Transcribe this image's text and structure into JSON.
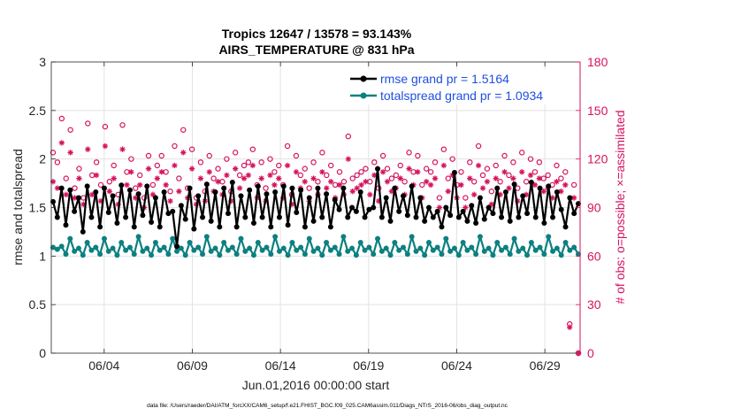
{
  "chart_data": {
    "type": "line",
    "title": "Tropics 12647 / 13578 = 93.143%",
    "subtitle": "AIRS_TEMPERATURE @ 831 hPa",
    "xlabel": "Jun.01,2016 00:00:00 start",
    "ylabel_left": "rmse and totalspread",
    "ylabel_right": "# of obs: o=possible; ×=assimilated",
    "xlim": [
      0,
      30
    ],
    "ylim_left": [
      0,
      3
    ],
    "ylim_right": [
      0,
      180
    ],
    "xticks": [
      {
        "x": 3,
        "label": "06/04"
      },
      {
        "x": 8,
        "label": "06/09"
      },
      {
        "x": 13,
        "label": "06/14"
      },
      {
        "x": 18,
        "label": "06/19"
      },
      {
        "x": 23,
        "label": "06/24"
      },
      {
        "x": 28,
        "label": "06/29"
      }
    ],
    "yticks_left": [
      "0",
      "0.5",
      "1",
      "1.5",
      "2",
      "2.5",
      "3"
    ],
    "yticks_right": [
      "0",
      "30",
      "60",
      "90",
      "120",
      "150",
      "180"
    ],
    "grid": true,
    "legend": {
      "placement": "top-right"
    },
    "series": [
      {
        "name": "rmse grand pr = 1.5164",
        "color": "#000000",
        "axis": "left",
        "values": [
          1.56,
          1.4,
          1.7,
          1.32,
          1.68,
          1.46,
          1.6,
          1.25,
          1.72,
          1.4,
          1.66,
          1.3,
          1.7,
          1.45,
          1.62,
          1.34,
          1.73,
          1.4,
          1.68,
          1.3,
          1.64,
          1.42,
          1.72,
          1.35,
          1.6,
          1.3,
          1.66,
          1.44,
          1.46,
          1.1,
          1.52,
          1.38,
          1.7,
          1.28,
          1.62,
          1.4,
          1.74,
          1.36,
          1.66,
          1.3,
          1.7,
          1.44,
          1.76,
          1.3,
          1.62,
          1.4,
          1.68,
          1.34,
          1.72,
          1.4,
          1.64,
          1.3,
          1.66,
          1.4,
          1.72,
          1.32,
          1.7,
          1.45,
          1.68,
          1.3,
          1.6,
          1.36,
          1.7,
          1.4,
          1.64,
          1.3,
          1.58,
          1.48,
          1.7,
          1.4,
          1.5,
          1.46,
          1.66,
          1.4,
          1.48,
          1.5,
          1.9,
          1.4,
          1.6,
          1.36,
          1.7,
          1.46,
          1.62,
          1.42,
          1.72,
          1.4,
          1.6,
          1.36,
          1.5,
          1.4,
          1.46,
          1.3,
          1.5,
          1.42,
          1.86,
          1.4,
          1.46,
          1.36,
          1.52,
          1.34,
          1.6,
          1.38,
          1.5,
          1.44,
          1.7,
          1.4,
          1.66,
          1.36,
          1.74,
          1.4,
          1.62,
          1.44,
          1.76,
          1.4,
          1.7,
          1.34,
          1.72,
          1.4,
          1.66,
          1.48,
          1.3,
          1.6,
          1.44,
          1.54
        ]
      },
      {
        "name": "totalspread grand pr = 1.0934",
        "color": "#0d8080",
        "axis": "left",
        "values": [
          1.09,
          1.07,
          1.1,
          1.02,
          1.18,
          1.05,
          1.08,
          1.01,
          1.14,
          1.06,
          1.09,
          1.02,
          1.18,
          1.05,
          1.08,
          1.01,
          1.14,
          1.06,
          1.09,
          1.02,
          1.2,
          1.05,
          1.08,
          1.01,
          1.14,
          1.06,
          1.09,
          1.02,
          1.18,
          1.05,
          1.08,
          1.01,
          1.14,
          1.06,
          1.09,
          1.02,
          1.2,
          1.05,
          1.08,
          1.01,
          1.14,
          1.06,
          1.09,
          1.02,
          1.18,
          1.05,
          1.08,
          1.01,
          1.14,
          1.06,
          1.09,
          1.02,
          1.2,
          1.05,
          1.08,
          1.01,
          1.14,
          1.06,
          1.09,
          1.02,
          1.18,
          1.05,
          1.08,
          1.01,
          1.14,
          1.06,
          1.09,
          1.02,
          1.2,
          1.05,
          1.08,
          1.01,
          1.14,
          1.06,
          1.09,
          1.02,
          1.18,
          1.05,
          1.08,
          1.01,
          1.14,
          1.06,
          1.09,
          1.02,
          1.2,
          1.05,
          1.08,
          1.01,
          1.14,
          1.06,
          1.09,
          1.02,
          1.18,
          1.05,
          1.08,
          1.01,
          1.14,
          1.06,
          1.09,
          1.02,
          1.2,
          1.05,
          1.08,
          1.01,
          1.14,
          1.06,
          1.09,
          1.02,
          1.18,
          1.05,
          1.08,
          1.01,
          1.14,
          1.06,
          1.09,
          1.02,
          1.2,
          1.05,
          1.08,
          1.01,
          1.14,
          1.06,
          1.09,
          1.02
        ]
      },
      {
        "name": "# possible",
        "marker": "o",
        "color": "#d6125e",
        "axis": "right",
        "values": [
          124,
          118,
          145,
          108,
          138,
          102,
          114,
          96,
          142,
          110,
          118,
          104,
          140,
          106,
          116,
          98,
          141,
          112,
          120,
          102,
          110,
          96,
          122,
          104,
          116,
          122,
          112,
          100,
          128,
          108,
          138,
          102,
          126,
          96,
          118,
          100,
          122,
          108,
          114,
          106,
          120,
          100,
          124,
          110,
          116,
          118,
          126,
          104,
          118,
          102,
          120,
          112,
          116,
          104,
          128,
          98,
          122,
          110,
          114,
          102,
          118,
          106,
          124,
          110,
          116,
          104,
          112,
          106,
          134,
          108,
          110,
          112,
          114,
          106,
          118,
          102,
          122,
          114,
          108,
          110,
          116,
          106,
          124,
          112,
          122,
          104,
          114,
          112,
          118,
          96,
          126,
          108,
          120,
          104,
          112,
          96,
          118,
          106,
          128,
          110,
          114,
          100,
          116,
          106,
          122,
          110,
          118,
          102,
          124,
          106,
          120,
          112,
          118,
          108,
          110,
          104,
          116,
          108,
          112,
          18,
          104,
          0
        ]
      },
      {
        "name": "# assimilated",
        "marker": "*",
        "color": "#d6125e",
        "axis": "right",
        "values": [
          106,
          102,
          130,
          98,
          124,
          96,
          108,
          92,
          126,
          98,
          110,
          94,
          128,
          100,
          108,
          92,
          126,
          104,
          112,
          96,
          104,
          90,
          114,
          98,
          108,
          112,
          104,
          94,
          116,
          100,
          124,
          96,
          114,
          92,
          108,
          94,
          112,
          100,
          106,
          98,
          110,
          94,
          114,
          102,
          108,
          110,
          116,
          96,
          108,
          94,
          110,
          104,
          108,
          96,
          116,
          92,
          112,
          102,
          106,
          94,
          108,
          98,
          112,
          102,
          106,
          96,
          104,
          98,
          120,
          100,
          102,
          104,
          106,
          98,
          110,
          94,
          112,
          106,
          100,
          102,
          108,
          98,
          114,
          104,
          112,
          96,
          106,
          104,
          108,
          90,
          116,
          100,
          110,
          96,
          104,
          90,
          108,
          98,
          116,
          102,
          106,
          92,
          108,
          98,
          112,
          102,
          108,
          94,
          112,
          98,
          110,
          104,
          108,
          100,
          102,
          96,
          106,
          100,
          104,
          16,
          96,
          0
        ]
      }
    ]
  },
  "footer": {
    "data_file": "data file: /Users/raeder/DAI/ATM_forcXX/CAM6_setup/f.e21.FHIST_BGC.f09_025.CAM6assim.011/Diags_NTrS_2016-06/obs_diag_output.nc"
  },
  "style": {
    "rmse_color": "#000000",
    "spread_color": "#0d8080",
    "obs_color": "#d6125e",
    "legend_text_color": "#1f4fe0",
    "grid_color": "#e3e3e3"
  }
}
